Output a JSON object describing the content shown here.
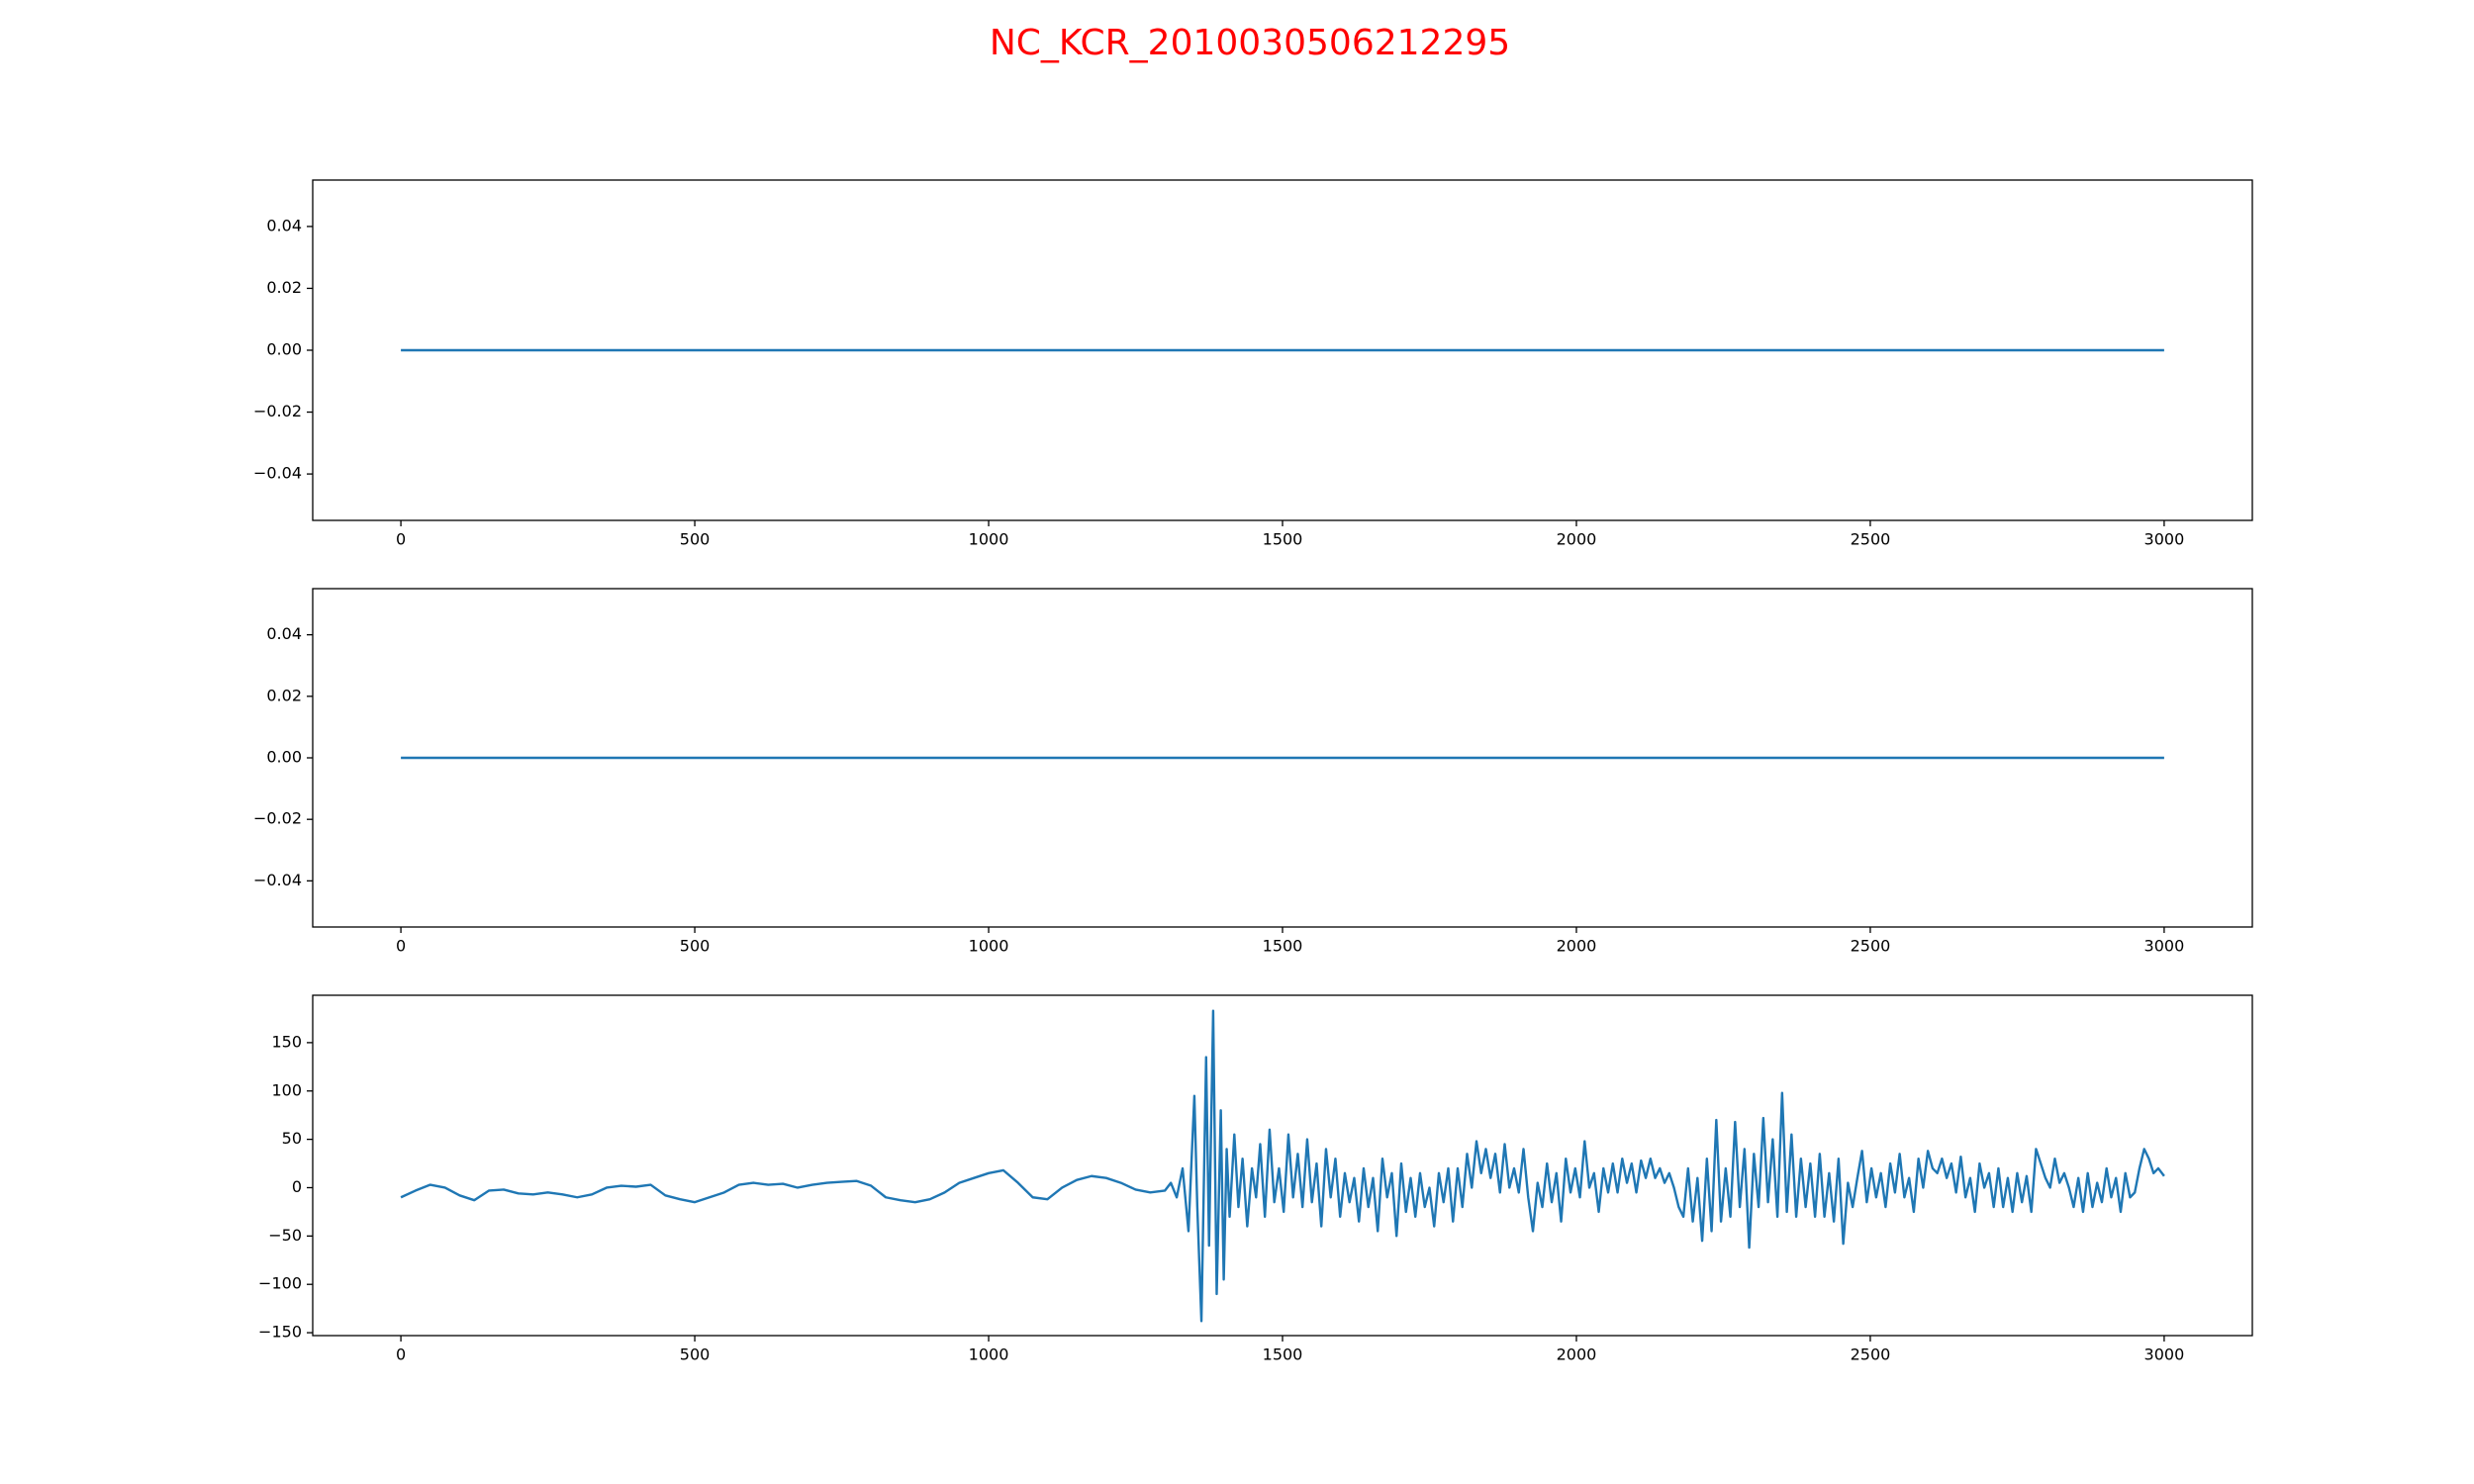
{
  "title": "NC_KCR_2010030506212295",
  "chart_data": [
    {
      "type": "line",
      "color": "#1f77b4",
      "x": [
        0,
        3000
      ],
      "values": [
        0,
        0
      ],
      "xlim": [
        -150,
        3150
      ],
      "xticks": [
        0,
        500,
        1000,
        1500,
        2000,
        2500,
        3000
      ],
      "ylim": [
        -0.055,
        0.055
      ],
      "yticks": [
        {
          "value": -0.04,
          "label": "−0.04"
        },
        {
          "value": -0.02,
          "label": "−0.02"
        },
        {
          "value": 0,
          "label": "0.00"
        },
        {
          "value": 0.02,
          "label": "0.02"
        },
        {
          "value": 0.04,
          "label": "0.04"
        }
      ]
    },
    {
      "type": "line",
      "color": "#1f77b4",
      "x": [
        0,
        3000
      ],
      "values": [
        0,
        0
      ],
      "xlim": [
        -150,
        3150
      ],
      "xticks": [
        0,
        500,
        1000,
        1500,
        2000,
        2500,
        3000
      ],
      "ylim": [
        -0.055,
        0.055
      ],
      "yticks": [
        {
          "value": -0.04,
          "label": "−0.04"
        },
        {
          "value": -0.02,
          "label": "−0.02"
        },
        {
          "value": 0,
          "label": "0.00"
        },
        {
          "value": 0.02,
          "label": "0.02"
        },
        {
          "value": 0.04,
          "label": "0.04"
        }
      ]
    },
    {
      "type": "line",
      "color": "#1f77b4",
      "x": [
        0,
        25,
        50,
        75,
        100,
        125,
        150,
        175,
        200,
        225,
        250,
        275,
        300,
        325,
        350,
        375,
        400,
        425,
        450,
        475,
        500,
        525,
        550,
        575,
        600,
        625,
        650,
        675,
        700,
        725,
        750,
        775,
        800,
        825,
        850,
        875,
        900,
        925,
        950,
        975,
        1000,
        1025,
        1050,
        1075,
        1100,
        1125,
        1150,
        1175,
        1200,
        1225,
        1250,
        1275,
        1300,
        1310,
        1320,
        1330,
        1340,
        1350,
        1355,
        1362,
        1370,
        1375,
        1382,
        1388,
        1395,
        1400,
        1405,
        1410,
        1418,
        1425,
        1432,
        1440,
        1448,
        1455,
        1462,
        1470,
        1478,
        1486,
        1494,
        1502,
        1510,
        1518,
        1526,
        1534,
        1542,
        1550,
        1558,
        1566,
        1574,
        1582,
        1590,
        1598,
        1606,
        1614,
        1622,
        1630,
        1638,
        1646,
        1654,
        1662,
        1670,
        1678,
        1686,
        1694,
        1702,
        1710,
        1718,
        1726,
        1734,
        1742,
        1750,
        1758,
        1766,
        1774,
        1782,
        1790,
        1798,
        1806,
        1814,
        1822,
        1830,
        1838,
        1846,
        1854,
        1862,
        1870,
        1878,
        1886,
        1894,
        1902,
        1910,
        1918,
        1926,
        1934,
        1942,
        1950,
        1958,
        1966,
        1974,
        1982,
        1990,
        1998,
        2006,
        2014,
        2022,
        2030,
        2038,
        2046,
        2054,
        2062,
        2070,
        2078,
        2086,
        2094,
        2102,
        2110,
        2118,
        2126,
        2134,
        2142,
        2150,
        2158,
        2166,
        2174,
        2182,
        2190,
        2198,
        2206,
        2214,
        2222,
        2230,
        2238,
        2246,
        2254,
        2262,
        2270,
        2278,
        2286,
        2294,
        2302,
        2310,
        2318,
        2326,
        2334,
        2342,
        2350,
        2358,
        2366,
        2374,
        2382,
        2390,
        2398,
        2406,
        2414,
        2422,
        2430,
        2438,
        2446,
        2454,
        2462,
        2470,
        2478,
        2486,
        2494,
        2502,
        2510,
        2518,
        2526,
        2534,
        2542,
        2550,
        2558,
        2566,
        2574,
        2582,
        2590,
        2598,
        2606,
        2614,
        2622,
        2630,
        2638,
        2646,
        2654,
        2662,
        2670,
        2678,
        2686,
        2694,
        2702,
        2710,
        2718,
        2726,
        2734,
        2742,
        2750,
        2758,
        2766,
        2774,
        2782,
        2790,
        2798,
        2806,
        2814,
        2822,
        2830,
        2838,
        2846,
        2854,
        2862,
        2870,
        2878,
        2886,
        2894,
        2902,
        2910,
        2918,
        2926,
        2934,
        2942,
        2950,
        2958,
        2966,
        2974,
        2982,
        2990,
        3000
      ],
      "values": [
        -10,
        -3,
        3,
        0,
        -8,
        -13,
        -3,
        -2,
        -6,
        -7,
        -5,
        -7,
        -10,
        -7,
        0,
        2,
        1,
        3,
        -8,
        -12,
        -15,
        -10,
        -5,
        3,
        5,
        3,
        4,
        0,
        3,
        5,
        6,
        7,
        2,
        -10,
        -13,
        -15,
        -12,
        -5,
        5,
        10,
        15,
        18,
        5,
        -10,
        -12,
        0,
        8,
        12,
        10,
        5,
        -2,
        -5,
        -3,
        5,
        -10,
        20,
        -45,
        95,
        -20,
        -138,
        135,
        -60,
        183,
        -110,
        80,
        -95,
        40,
        -30,
        55,
        -20,
        30,
        -40,
        20,
        -10,
        45,
        -30,
        60,
        -15,
        20,
        -25,
        55,
        -10,
        35,
        -20,
        50,
        -15,
        25,
        -40,
        40,
        -10,
        30,
        -30,
        15,
        -15,
        10,
        -35,
        20,
        -20,
        10,
        -45,
        30,
        -10,
        15,
        -50,
        25,
        -25,
        10,
        -30,
        15,
        -20,
        0,
        -40,
        15,
        -15,
        20,
        -35,
        20,
        -20,
        35,
        0,
        48,
        15,
        40,
        10,
        35,
        -5,
        45,
        0,
        20,
        -5,
        40,
        -10,
        -45,
        5,
        -20,
        25,
        -15,
        15,
        -35,
        30,
        -5,
        20,
        -10,
        48,
        0,
        15,
        -25,
        20,
        -5,
        25,
        -5,
        30,
        5,
        25,
        -5,
        28,
        10,
        30,
        10,
        20,
        5,
        15,
        0,
        -20,
        -30,
        20,
        -35,
        10,
        -55,
        30,
        -45,
        70,
        -35,
        20,
        -30,
        68,
        -20,
        40,
        -62,
        35,
        -20,
        72,
        -15,
        50,
        -30,
        98,
        -25,
        55,
        -30,
        30,
        -20,
        25,
        -30,
        35,
        -30,
        15,
        -35,
        30,
        -58,
        5,
        -20,
        10,
        38,
        -15,
        20,
        -10,
        15,
        -20,
        25,
        -5,
        35,
        -10,
        10,
        -25,
        30,
        0,
        38,
        20,
        15,
        30,
        10,
        25,
        -5,
        32,
        -10,
        10,
        -25,
        25,
        0,
        15,
        -20,
        20,
        -20,
        10,
        -25,
        15,
        -15,
        12,
        -25,
        40,
        25,
        10,
        0,
        30,
        5,
        15,
        0,
        -20,
        10,
        -25,
        15,
        -20,
        5,
        -15,
        20,
        -10,
        10,
        -25,
        15,
        -10,
        -5,
        20,
        40,
        30,
        15,
        20,
        12
      ],
      "xlim": [
        -150,
        3150
      ],
      "xticks": [
        0,
        500,
        1000,
        1500,
        2000,
        2500,
        3000
      ],
      "ylim": [
        -153,
        199
      ],
      "yticks": [
        {
          "value": -150,
          "label": "−150"
        },
        {
          "value": -100,
          "label": "−100"
        },
        {
          "value": -50,
          "label": "−50"
        },
        0,
        50,
        100,
        150
      ]
    }
  ]
}
